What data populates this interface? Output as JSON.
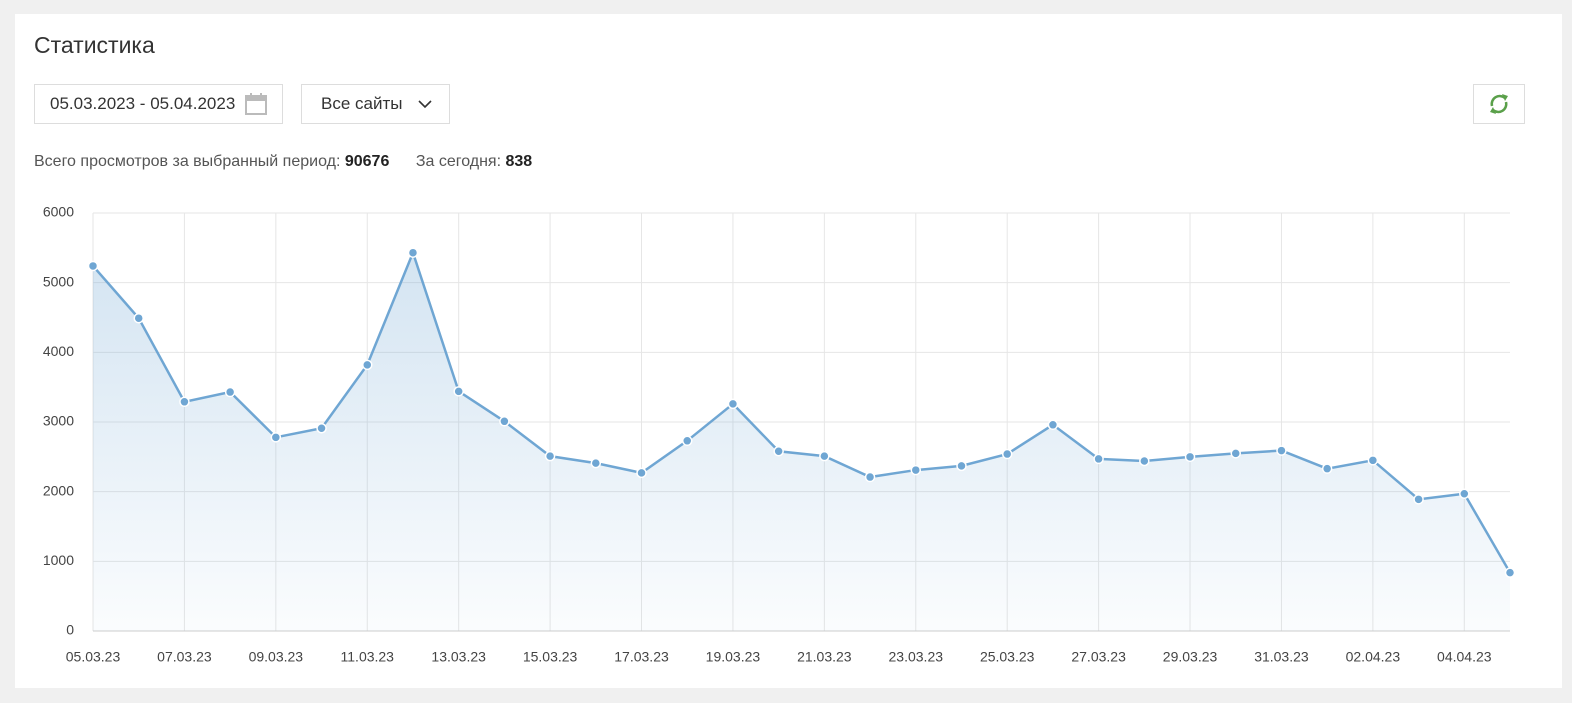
{
  "header": {
    "title": "Статистика"
  },
  "controls": {
    "date_range": "05.03.2023 - 05.04.2023",
    "site_select": "Все сайты"
  },
  "summary": {
    "total_label": "Всего просмотров за выбранный период:",
    "total_value": "90676",
    "today_label": "За сегодня:",
    "today_value": "838"
  },
  "chart_data": {
    "type": "area",
    "categories": [
      "05.03.23",
      null,
      "07.03.23",
      null,
      "09.03.23",
      null,
      "11.03.23",
      null,
      "13.03.23",
      null,
      "15.03.23",
      null,
      "17.03.23",
      null,
      "19.03.23",
      null,
      "21.03.23",
      null,
      "23.03.23",
      null,
      "25.03.23",
      null,
      "27.03.23",
      null,
      "29.03.23",
      null,
      "31.03.23",
      null,
      "02.04.23",
      null,
      "04.04.23",
      null
    ],
    "values": [
      5240,
      4490,
      3290,
      3430,
      2780,
      2910,
      3820,
      5430,
      3440,
      3010,
      2510,
      2410,
      2270,
      2730,
      3260,
      2580,
      2510,
      2210,
      2310,
      2370,
      2540,
      2960,
      2470,
      2440,
      2500,
      2550,
      2590,
      2330,
      2450,
      1890,
      1970,
      838
    ],
    "color": "#6fa6d3",
    "ylim": [
      0,
      6000
    ],
    "yticks": [
      0,
      1000,
      2000,
      3000,
      4000,
      5000,
      6000
    ],
    "grid": true
  }
}
